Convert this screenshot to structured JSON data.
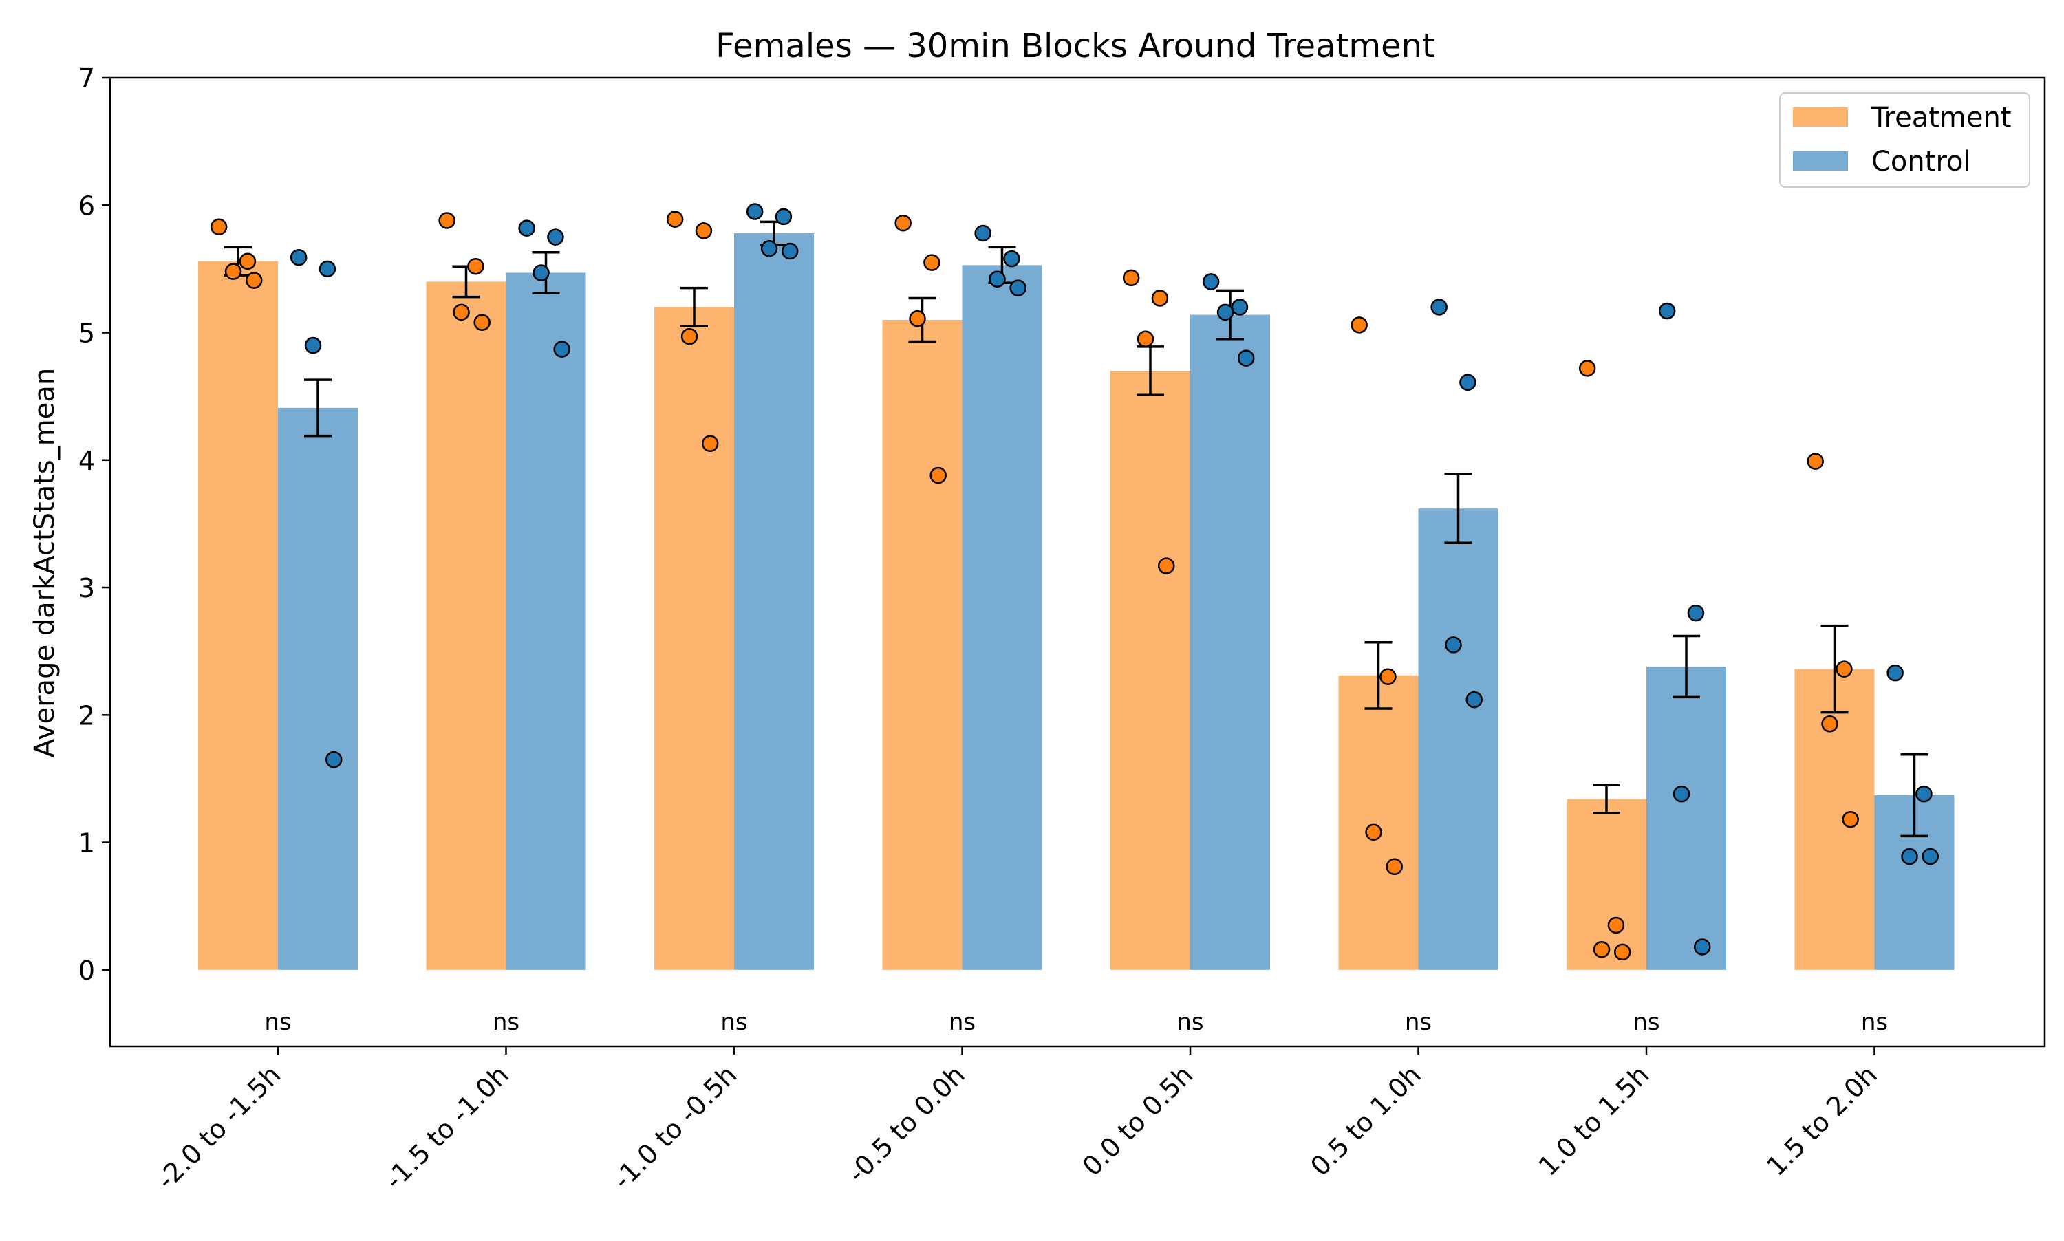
{
  "chart_data": {
    "type": "bar",
    "title": "Females — 30min Blocks Around Treatment",
    "xlabel": "",
    "ylabel": "Average darkActStats_mean",
    "ylim": [
      -0.6,
      7
    ],
    "yticks": [
      0,
      1,
      2,
      3,
      4,
      5,
      6,
      7
    ],
    "grid": false,
    "legend_position": "top-right",
    "categories": [
      "-2.0 to -1.5h",
      "-1.5 to -1.0h",
      "-1.0 to -0.5h",
      "-0.5 to 0.0h",
      "0.0 to 0.5h",
      "0.5 to 1.0h",
      "1.0 to 1.5h",
      "1.5 to 2.0h"
    ],
    "significance": [
      "ns",
      "ns",
      "ns",
      "ns",
      "ns",
      "ns",
      "ns",
      "ns"
    ],
    "series": [
      {
        "name": "Treatment",
        "bar_color": "#fdb46e",
        "point_color": "#ff7f0e",
        "values": [
          5.56,
          5.4,
          5.2,
          5.1,
          4.7,
          2.31,
          1.34,
          2.36
        ],
        "sem": [
          0.11,
          0.12,
          0.15,
          0.17,
          0.19,
          0.26,
          0.11,
          0.34
        ],
        "points": [
          [
            5.83,
            5.56,
            5.48,
            5.41
          ],
          [
            5.88,
            5.52,
            5.16,
            5.08
          ],
          [
            5.89,
            5.8,
            4.97,
            4.13
          ],
          [
            5.86,
            5.55,
            5.11,
            3.88
          ],
          [
            5.43,
            5.27,
            4.95,
            3.17
          ],
          [
            5.06,
            2.3,
            1.08,
            0.81
          ],
          [
            4.72,
            0.35,
            0.16,
            0.14
          ],
          [
            3.99,
            2.36,
            1.93,
            1.18
          ]
        ]
      },
      {
        "name": "Control",
        "bar_color": "#79acd2",
        "point_color": "#1f77b4",
        "values": [
          4.41,
          5.47,
          5.78,
          5.53,
          5.14,
          3.62,
          2.38,
          1.37
        ],
        "sem": [
          0.22,
          0.16,
          0.09,
          0.14,
          0.19,
          0.27,
          0.24,
          0.32
        ],
        "points": [
          [
            5.59,
            5.5,
            4.9,
            1.65
          ],
          [
            5.82,
            5.75,
            5.47,
            4.87
          ],
          [
            5.95,
            5.91,
            5.66,
            5.64
          ],
          [
            5.78,
            5.58,
            5.42,
            5.35
          ],
          [
            5.4,
            5.2,
            5.16,
            4.8
          ],
          [
            5.2,
            4.61,
            2.55,
            2.12
          ],
          [
            5.17,
            2.8,
            1.38,
            0.18
          ],
          [
            2.33,
            1.38,
            0.89,
            0.89
          ]
        ]
      }
    ]
  }
}
